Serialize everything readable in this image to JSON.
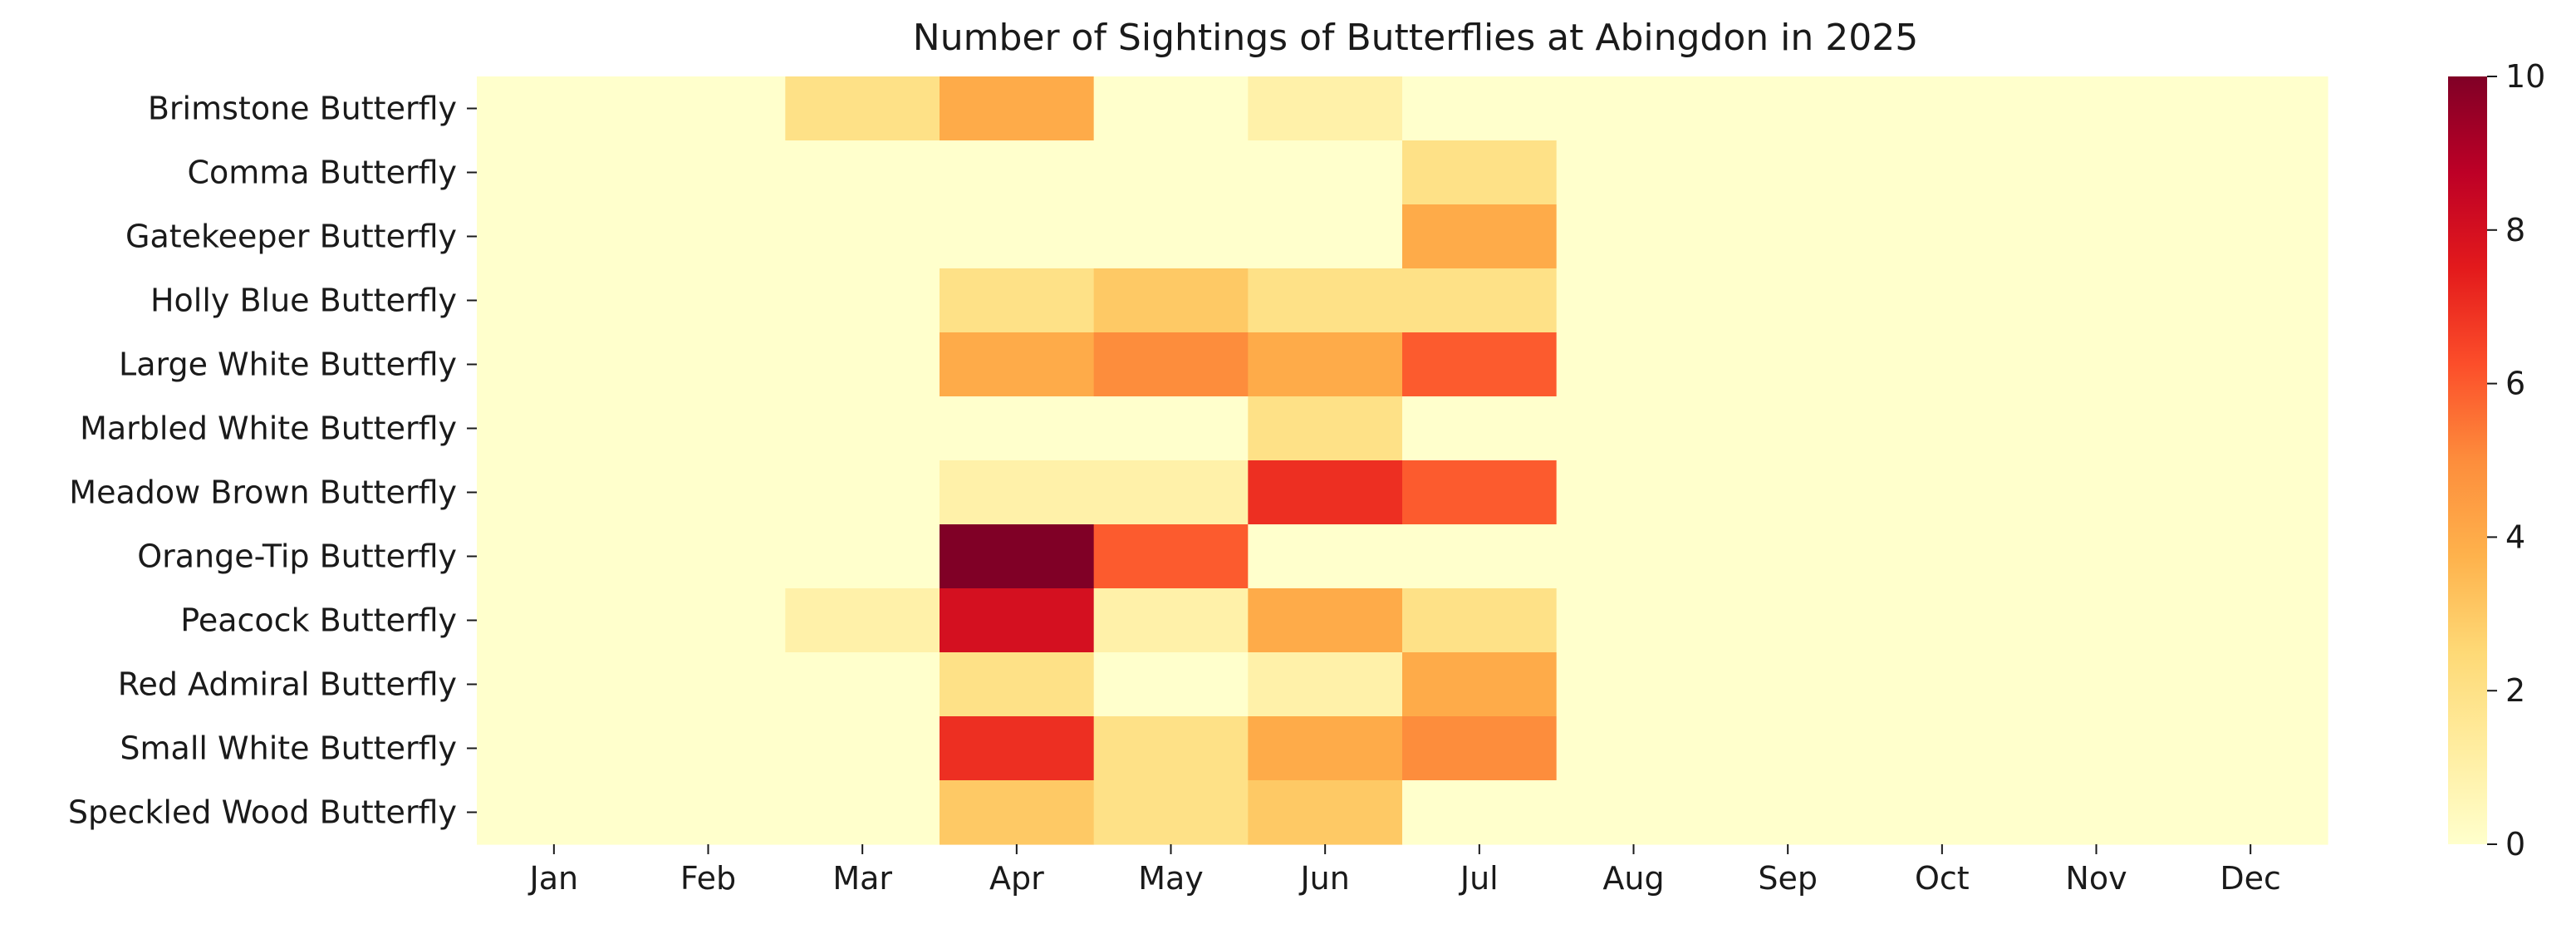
{
  "chart_data": {
    "type": "heatmap",
    "title": "Number of Sightings of Butterflies at Abingdon in 2025",
    "xlabel": "",
    "ylabel": "",
    "x_categories": [
      "Jan",
      "Feb",
      "Mar",
      "Apr",
      "May",
      "Jun",
      "Jul",
      "Aug",
      "Sep",
      "Oct",
      "Nov",
      "Dec"
    ],
    "y_categories": [
      "Brimstone Butterfly",
      "Comma Butterfly",
      "Gatekeeper Butterfly",
      "Holly Blue Butterfly",
      "Large White Butterfly",
      "Marbled White Butterfly",
      "Meadow Brown Butterfly",
      "Orange-Tip Butterfly",
      "Peacock Butterfly",
      "Red Admiral Butterfly",
      "Small White Butterfly",
      "Speckled Wood Butterfly"
    ],
    "values": [
      [
        0,
        0,
        2,
        4,
        0,
        1,
        0,
        0,
        0,
        0,
        0,
        0
      ],
      [
        0,
        0,
        0,
        0,
        0,
        0,
        2,
        0,
        0,
        0,
        0,
        0
      ],
      [
        0,
        0,
        0,
        0,
        0,
        0,
        4,
        0,
        0,
        0,
        0,
        0
      ],
      [
        0,
        0,
        0,
        2,
        3,
        2,
        2,
        0,
        0,
        0,
        0,
        0
      ],
      [
        0,
        0,
        0,
        4,
        5,
        4,
        6,
        0,
        0,
        0,
        0,
        0
      ],
      [
        0,
        0,
        0,
        0,
        0,
        2,
        0,
        0,
        0,
        0,
        0,
        0
      ],
      [
        0,
        0,
        0,
        1,
        1,
        7,
        6,
        0,
        0,
        0,
        0,
        0
      ],
      [
        0,
        0,
        0,
        10,
        6,
        0,
        0,
        0,
        0,
        0,
        0,
        0
      ],
      [
        0,
        0,
        1,
        8,
        1,
        4,
        2,
        0,
        0,
        0,
        0,
        0
      ],
      [
        0,
        0,
        0,
        2,
        0,
        1,
        4,
        0,
        0,
        0,
        0,
        0
      ],
      [
        0,
        0,
        0,
        7,
        2,
        4,
        5,
        0,
        0,
        0,
        0,
        0
      ],
      [
        0,
        0,
        0,
        3,
        2,
        3,
        0,
        0,
        0,
        0,
        0,
        0
      ]
    ],
    "colorbar": {
      "min": 0,
      "max": 10,
      "ticks": [
        0,
        2,
        4,
        6,
        8,
        10
      ],
      "colormap": "YlOrRd",
      "stops": [
        "#ffffcc",
        "#ffeda0",
        "#fed976",
        "#feb24c",
        "#fd8d3c",
        "#fc4e2a",
        "#e31a1c",
        "#bd0026",
        "#800026"
      ]
    },
    "grid": false
  }
}
